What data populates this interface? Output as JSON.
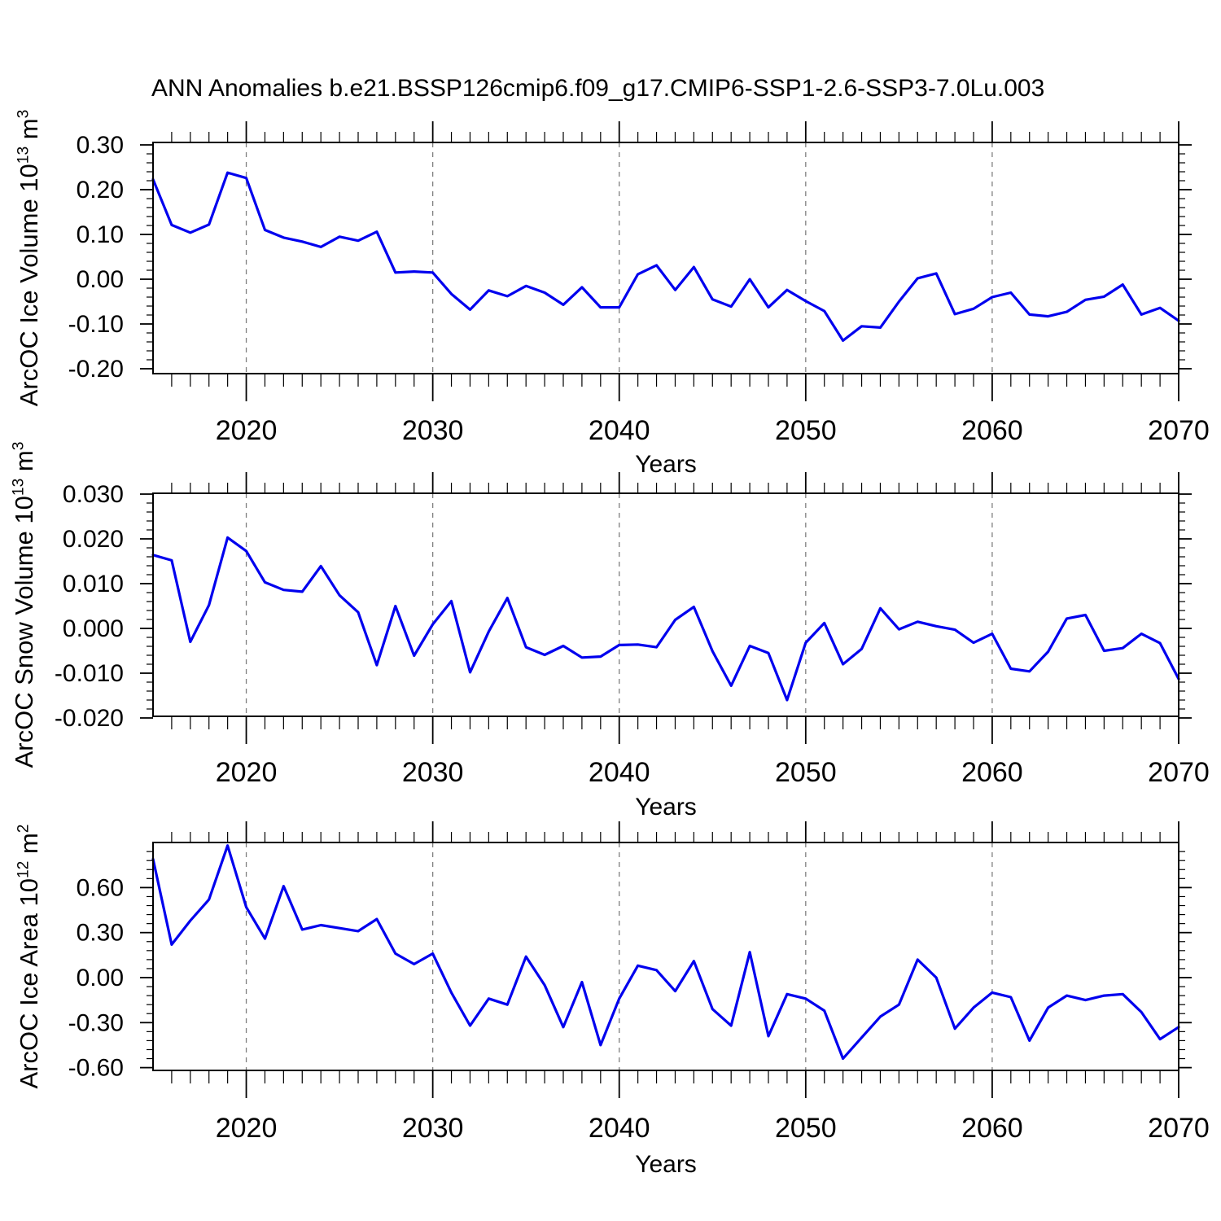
{
  "page": {
    "title": "ANN Anomalies b.e21.BSSP126cmip6.f09_g17.CMIP6-SSP1-2.6-SSP3-7.0Lu.003",
    "background": "#ffffff"
  },
  "style": {
    "line_color": "#0000ee",
    "grid_color": "#7f7f7f",
    "axis_color": "#000000"
  },
  "chart_data": [
    {
      "type": "line",
      "title": "ANN Anomalies b.e21.BSSP126cmip6.f09_g17.CMIP6-SSP1-2.6-SSP3-7.0Lu.003",
      "ylabel": "ArcOC Ice Volume 10^13 m^3",
      "xlabel": "Years",
      "legend_position": "none",
      "grid": "vertical-dashed-decades",
      "xlim": [
        2015,
        2070
      ],
      "ylim": [
        -0.2055,
        0.3055
      ],
      "xticks": {
        "values": [
          2020,
          2030,
          2040,
          2050,
          2060,
          2070
        ],
        "labels": [
          "2020",
          "2030",
          "2040",
          "2050",
          "2060",
          "2070"
        ]
      },
      "yticks": {
        "values": [
          0.3,
          0.2,
          0.1,
          0.0,
          -0.1,
          -0.2
        ],
        "labels": [
          "0.30",
          "0.20",
          "0.10",
          "0.00",
          "-0.10",
          "-0.20"
        ]
      },
      "grid_years": [
        2020,
        2030,
        2040,
        2050,
        2060
      ],
      "x": [
        2015,
        2016,
        2017,
        2018,
        2019,
        2020,
        2021,
        2022,
        2023,
        2024,
        2025,
        2026,
        2027,
        2028,
        2029,
        2030,
        2031,
        2032,
        2033,
        2034,
        2035,
        2036,
        2037,
        2038,
        2039,
        2040,
        2041,
        2042,
        2043,
        2044,
        2045,
        2046,
        2047,
        2048,
        2049,
        2050,
        2051,
        2052,
        2053,
        2054,
        2055,
        2056,
        2057,
        2058,
        2059,
        2060,
        2061,
        2062,
        2063,
        2064,
        2065,
        2066,
        2067,
        2068,
        2069,
        2070
      ],
      "values": [
        0.223,
        0.121,
        0.104,
        0.122,
        0.238,
        0.226,
        0.11,
        0.093,
        0.084,
        0.072,
        0.095,
        0.086,
        0.106,
        0.015,
        0.017,
        0.015,
        -0.033,
        -0.068,
        -0.025,
        -0.038,
        -0.015,
        -0.03,
        -0.057,
        -0.018,
        -0.063,
        -0.063,
        0.011,
        0.031,
        -0.024,
        0.027,
        -0.045,
        -0.061,
        0.0,
        -0.063,
        -0.024,
        -0.049,
        -0.071,
        -0.137,
        -0.105,
        -0.108,
        -0.05,
        0.002,
        0.013,
        -0.078,
        -0.066,
        -0.04,
        -0.03,
        -0.079,
        -0.083,
        -0.073,
        -0.046,
        -0.039,
        -0.012,
        -0.079,
        -0.064,
        -0.093
      ]
    },
    {
      "type": "line",
      "title": "",
      "ylabel": "ArcOC Snow Volume 10^13 m^3",
      "xlabel": "Years",
      "legend_position": "none",
      "grid": "vertical-dashed-decades",
      "xlim": [
        2015,
        2070
      ],
      "ylim": [
        -0.0196,
        0.0302
      ],
      "xticks": {
        "values": [
          2020,
          2030,
          2040,
          2050,
          2060,
          2070
        ],
        "labels": [
          "2020",
          "2030",
          "2040",
          "2050",
          "2060",
          "2070"
        ]
      },
      "yticks": {
        "values": [
          0.03,
          0.02,
          0.01,
          0.0,
          -0.01,
          -0.02
        ],
        "labels": [
          "0.030",
          "0.020",
          "0.010",
          "0.000",
          "-0.010",
          "-0.020"
        ]
      },
      "grid_years": [
        2020,
        2030,
        2040,
        2050,
        2060
      ],
      "x": [
        2015,
        2016,
        2017,
        2018,
        2019,
        2020,
        2021,
        2022,
        2023,
        2024,
        2025,
        2026,
        2027,
        2028,
        2029,
        2030,
        2031,
        2032,
        2033,
        2034,
        2035,
        2036,
        2037,
        2038,
        2039,
        2040,
        2041,
        2042,
        2043,
        2044,
        2045,
        2046,
        2047,
        2048,
        2049,
        2050,
        2051,
        2052,
        2053,
        2054,
        2055,
        2056,
        2057,
        2058,
        2059,
        2060,
        2061,
        2062,
        2063,
        2064,
        2065,
        2066,
        2067,
        2068,
        2069,
        2070
      ],
      "values": [
        0.0164,
        0.0152,
        -0.003,
        0.0052,
        0.0203,
        0.0173,
        0.0103,
        0.0086,
        0.0082,
        0.0139,
        0.0074,
        0.0036,
        -0.0082,
        0.005,
        -0.0061,
        0.0009,
        0.0061,
        -0.0098,
        -0.0007,
        0.0068,
        -0.0042,
        -0.0059,
        -0.0039,
        -0.0065,
        -0.0063,
        -0.0037,
        -0.0036,
        -0.0042,
        0.0019,
        0.0048,
        -0.0051,
        -0.0128,
        -0.0039,
        -0.0055,
        -0.016,
        -0.0032,
        0.0012,
        -0.008,
        -0.0046,
        0.0045,
        -0.0002,
        0.0015,
        0.0005,
        -0.0003,
        -0.0032,
        -0.0012,
        -0.009,
        -0.0096,
        -0.0052,
        0.0022,
        0.003,
        -0.005,
        -0.0044,
        -0.0012,
        -0.0033,
        -0.0113
      ]
    },
    {
      "type": "line",
      "title": "",
      "ylabel": "ArcOC Ice Area 10^12 m^2",
      "xlabel": "Years",
      "legend_position": "none",
      "grid": "vertical-dashed-decades",
      "xlim": [
        2015,
        2070
      ],
      "ylim": [
        -0.62,
        0.9
      ],
      "xticks": {
        "values": [
          2020,
          2030,
          2040,
          2050,
          2060,
          2070
        ],
        "labels": [
          "2020",
          "2030",
          "2040",
          "2050",
          "2060",
          "2070"
        ]
      },
      "yticks": {
        "values": [
          0.6,
          0.3,
          0.0,
          -0.3,
          -0.6
        ],
        "labels": [
          "0.60",
          "0.30",
          "0.00",
          "-0.30",
          "-0.60"
        ]
      },
      "grid_years": [
        2020,
        2030,
        2040,
        2050,
        2060
      ],
      "x": [
        2015,
        2016,
        2017,
        2018,
        2019,
        2020,
        2021,
        2022,
        2023,
        2024,
        2025,
        2026,
        2027,
        2028,
        2029,
        2030,
        2031,
        2032,
        2033,
        2034,
        2035,
        2036,
        2037,
        2038,
        2039,
        2040,
        2041,
        2042,
        2043,
        2044,
        2045,
        2046,
        2047,
        2048,
        2049,
        2050,
        2051,
        2052,
        2053,
        2054,
        2055,
        2056,
        2057,
        2058,
        2059,
        2060,
        2061,
        2062,
        2063,
        2064,
        2065,
        2066,
        2067,
        2068,
        2069,
        2070
      ],
      "values": [
        0.79,
        0.22,
        0.38,
        0.52,
        0.88,
        0.47,
        0.26,
        0.61,
        0.32,
        0.35,
        0.33,
        0.31,
        0.39,
        0.16,
        0.09,
        0.16,
        -0.1,
        -0.32,
        -0.14,
        -0.18,
        0.14,
        -0.05,
        -0.33,
        -0.03,
        -0.45,
        -0.14,
        0.08,
        0.05,
        -0.09,
        0.11,
        -0.21,
        -0.32,
        0.17,
        -0.39,
        -0.11,
        -0.14,
        -0.22,
        -0.54,
        -0.4,
        -0.26,
        -0.18,
        0.12,
        0.0,
        -0.34,
        -0.2,
        -0.1,
        -0.13,
        -0.42,
        -0.2,
        -0.12,
        -0.15,
        -0.12,
        -0.11,
        -0.23,
        -0.41,
        -0.33
      ]
    }
  ]
}
